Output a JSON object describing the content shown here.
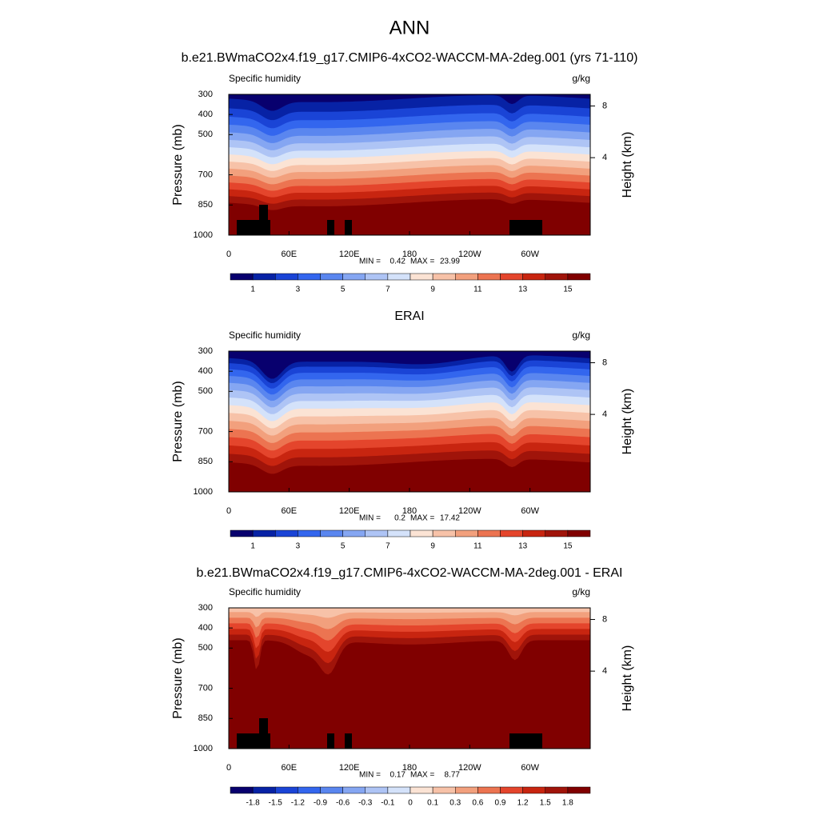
{
  "title": "ANN",
  "chart_data": [
    {
      "type": "contour",
      "title": "b.e21.BWmaCO2x4.f19_g17.CMIP6-4xCO2-WACCM-MA-2deg.001 (yrs 71-110)",
      "left_label": "Specific humidity",
      "right_label": "g/kg",
      "ylabel": "Pressure (mb)",
      "y2label": "Height (km)",
      "xlim": [
        0,
        360
      ],
      "xticks": [
        0,
        {
          "value": 60,
          "label": "60E"
        },
        {
          "value": 120,
          "label": "120E"
        },
        180,
        {
          "value": 240,
          "label": "120W"
        },
        {
          "value": 300,
          "label": "60W"
        }
      ],
      "ylim": [
        1000,
        300
      ],
      "yticks": [
        300,
        400,
        500,
        700,
        850,
        1000
      ],
      "y2lim": [
        -2,
        8.9
      ],
      "y2ticks": [
        4,
        8
      ],
      "min_label": "MIN =",
      "min": 0.42,
      "max_label": "MAX =",
      "max": 23.99,
      "colorbar": {
        "colors": [
          "#08006e",
          "#0722a5",
          "#1a44d6",
          "#3366ee",
          "#5a86ef",
          "#85a6f2",
          "#aec4f5",
          "#d4e2fa",
          "#fbe3d4",
          "#f7c2a8",
          "#f2a07d",
          "#ec7451",
          "#e4452c",
          "#c82510",
          "#a0140a",
          "#800000"
        ],
        "labels": [
          1,
          3,
          5,
          7,
          9,
          11,
          13,
          15
        ]
      }
    },
    {
      "type": "contour",
      "title": "ERAI",
      "left_label": "Specific humidity",
      "right_label": "g/kg",
      "ylabel": "Pressure (mb)",
      "y2label": "Height (km)",
      "xlim": [
        0,
        360
      ],
      "xticks": [
        0,
        {
          "value": 60,
          "label": "60E"
        },
        {
          "value": 120,
          "label": "120E"
        },
        180,
        {
          "value": 240,
          "label": "120W"
        },
        {
          "value": 300,
          "label": "60W"
        }
      ],
      "ylim": [
        1000,
        300
      ],
      "yticks": [
        300,
        400,
        500,
        700,
        850,
        1000
      ],
      "y2lim": [
        -2,
        8.9
      ],
      "y2ticks": [
        4,
        8
      ],
      "min_label": "MIN =",
      "min": 0.2,
      "max_label": "MAX =",
      "max": 17.42,
      "colorbar": {
        "colors": [
          "#08006e",
          "#0722a5",
          "#1a44d6",
          "#3366ee",
          "#5a86ef",
          "#85a6f2",
          "#aec4f5",
          "#d4e2fa",
          "#fbe3d4",
          "#f7c2a8",
          "#f2a07d",
          "#ec7451",
          "#e4452c",
          "#c82510",
          "#a0140a",
          "#800000"
        ],
        "labels": [
          1,
          3,
          5,
          7,
          9,
          11,
          13,
          15
        ]
      }
    },
    {
      "type": "contour",
      "title": "b.e21.BWmaCO2x4.f19_g17.CMIP6-4xCO2-WACCM-MA-2deg.001 - ERAI",
      "left_label": "Specific humidity",
      "right_label": "g/kg",
      "ylabel": "Pressure (mb)",
      "y2label": "Height (km)",
      "xlim": [
        0,
        360
      ],
      "xticks": [
        0,
        {
          "value": 60,
          "label": "60E"
        },
        {
          "value": 120,
          "label": "120E"
        },
        180,
        {
          "value": 240,
          "label": "120W"
        },
        {
          "value": 300,
          "label": "60W"
        }
      ],
      "ylim": [
        1000,
        300
      ],
      "yticks": [
        300,
        400,
        500,
        700,
        850,
        1000
      ],
      "y2lim": [
        -2,
        8.9
      ],
      "y2ticks": [
        4,
        8
      ],
      "min_label": "MIN =",
      "min": 0.17,
      "max_label": "MAX =",
      "max": 8.77,
      "colorbar": {
        "colors": [
          "#08006e",
          "#0722a5",
          "#1a44d6",
          "#3366ee",
          "#5a86ef",
          "#85a6f2",
          "#aec4f5",
          "#d4e2fa",
          "#fbe3d4",
          "#f7c2a8",
          "#f2a07d",
          "#ec7451",
          "#e4452c",
          "#c82510",
          "#a0140a",
          "#800000"
        ],
        "labels": [
          -1.8,
          -1.5,
          -1.2,
          -0.9,
          -0.6,
          -0.3,
          -0.1,
          0,
          0.1,
          0.3,
          0.6,
          0.9,
          1.2,
          1.5,
          1.8
        ]
      }
    }
  ]
}
